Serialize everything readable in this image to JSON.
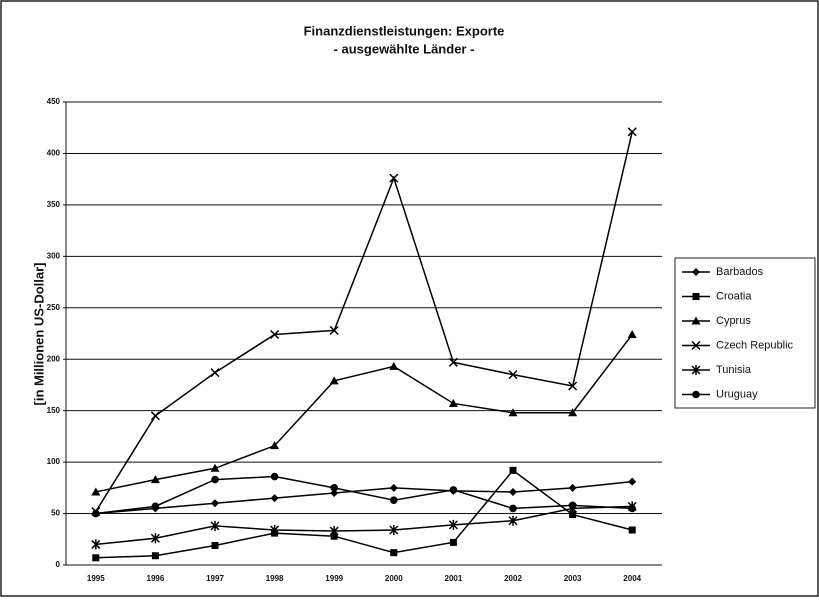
{
  "chart_data": {
    "type": "line",
    "title": "Finanzdienstleistungen: Exporte",
    "subtitle": "- ausgewählte Länder -",
    "y_label": "[in Millionen US-Dollar]",
    "categories": [
      "1995",
      "1996",
      "1997",
      "1998",
      "1999",
      "2000",
      "2001",
      "2002",
      "2003",
      "2004"
    ],
    "ylim": [
      0,
      450
    ],
    "yticks": [
      0,
      50,
      100,
      150,
      200,
      250,
      300,
      350,
      400,
      450
    ],
    "grid": true,
    "legend": "right",
    "series": [
      {
        "name": "Barbados",
        "color": "#000000",
        "marker": "diamond",
        "values": [
          50,
          55,
          60,
          65,
          70,
          75,
          72,
          71,
          75,
          81
        ]
      },
      {
        "name": "Croatia",
        "color": "#000000",
        "marker": "square",
        "values": [
          7,
          9,
          19,
          31,
          28,
          12,
          22,
          92,
          49,
          34
        ]
      },
      {
        "name": "Cyprus",
        "color": "#000000",
        "marker": "triangle",
        "values": [
          71,
          83,
          94,
          116,
          179,
          193,
          157,
          148,
          148,
          224
        ]
      },
      {
        "name": "Czech Republic",
        "color": "#000000",
        "marker": "x",
        "values": [
          52,
          145,
          187,
          224,
          228,
          376,
          197,
          185,
          174,
          421
        ]
      },
      {
        "name": "Tunisia",
        "color": "#000000",
        "marker": "star",
        "values": [
          20,
          26,
          38,
          34,
          33,
          34,
          39,
          43,
          55,
          57
        ]
      },
      {
        "name": "Uruguay",
        "color": "#000000",
        "marker": "circle",
        "values": [
          50,
          57,
          83,
          86,
          75,
          63,
          73,
          55,
          58,
          55
        ]
      }
    ]
  }
}
